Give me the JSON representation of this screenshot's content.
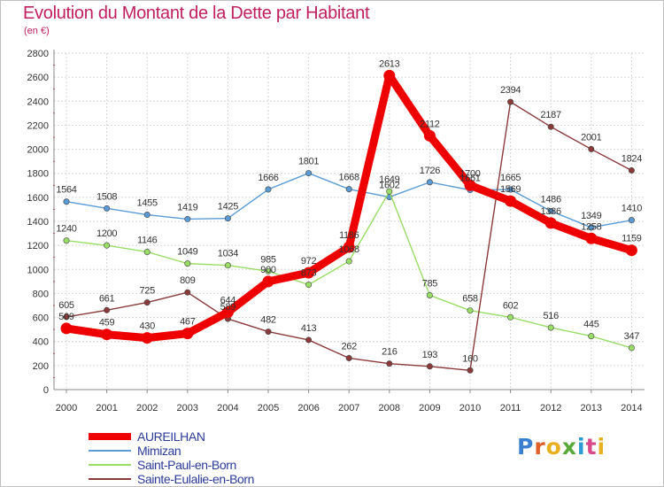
{
  "header": {
    "title": "Evolution du Montant de la Dette par Habitant",
    "subtitle": "(en €)"
  },
  "logo": {
    "text": "Proxiti",
    "letter_colors": [
      "#3a7fd0",
      "#e0602a",
      "#e8b020",
      "#58a83a",
      "#2a9ad0",
      "#d84a8a",
      "#e8b020"
    ]
  },
  "chart_data": {
    "type": "line",
    "title": "Evolution du Montant de la Dette par Habitant",
    "subtitle": "(en €)",
    "xlabel": "",
    "ylabel": "",
    "ylim": [
      0,
      2800
    ],
    "yticks": [
      0,
      200,
      400,
      600,
      800,
      1000,
      1200,
      1400,
      1600,
      1800,
      2000,
      2200,
      2400,
      2600,
      2800
    ],
    "grid": true,
    "legend": "bottom-left",
    "x": [
      "2000",
      "2001",
      "2002",
      "2003",
      "2004",
      "2005",
      "2006",
      "2007",
      "2008",
      "2009",
      "2010",
      "2011",
      "2012",
      "2013",
      "2014"
    ],
    "series": [
      {
        "name": "AUREILHAN",
        "color": "#ee0000",
        "emphasis": true,
        "values": [
          509,
          459,
          430,
          467,
          644,
          900,
          972,
          1186,
          2613,
          2112,
          1700,
          1569,
          1386,
          1258,
          1159
        ],
        "labels": [
          "509",
          "459",
          "430",
          "467",
          "644",
          "900",
          "972",
          "1186",
          "2613",
          "2112",
          "1700",
          "1569",
          "1386",
          "1258",
          "1159"
        ]
      },
      {
        "name": "Mimizan",
        "color": "#5b9bd5",
        "emphasis": false,
        "values": [
          1564,
          1508,
          1455,
          1419,
          1425,
          1666,
          1801,
          1668,
          1602,
          1726,
          1661,
          1665,
          1486,
          1349,
          1410
        ],
        "labels": [
          "1564",
          "1508",
          "1455",
          "1419",
          "1425",
          "1666",
          "1801",
          "1668",
          "1602",
          "1726",
          "1661",
          "1665",
          "1486",
          "1349",
          "1410"
        ]
      },
      {
        "name": "Saint-Paul-en-Born",
        "color": "#99dd66",
        "emphasis": false,
        "values": [
          1240,
          1200,
          1146,
          1049,
          1034,
          985,
          873,
          1068,
          1649,
          785,
          658,
          602,
          516,
          445,
          347
        ],
        "labels": [
          "1240",
          "1200",
          "1146",
          "1049",
          "1034",
          "985",
          "873",
          "1068",
          "1649",
          "785",
          "658",
          "602",
          "516",
          "445",
          "347"
        ]
      },
      {
        "name": "Sainte-Eulalie-en-Born",
        "color": "#8b3a3a",
        "emphasis": false,
        "values": [
          605,
          661,
          725,
          809,
          589,
          482,
          413,
          262,
          216,
          193,
          160,
          2394,
          2187,
          2001,
          1824
        ],
        "labels": [
          "605",
          "661",
          "725",
          "809",
          "589",
          "482",
          "413",
          "262",
          "216",
          "193",
          "160",
          "2394",
          "2187",
          "2001",
          "1824"
        ]
      }
    ]
  }
}
